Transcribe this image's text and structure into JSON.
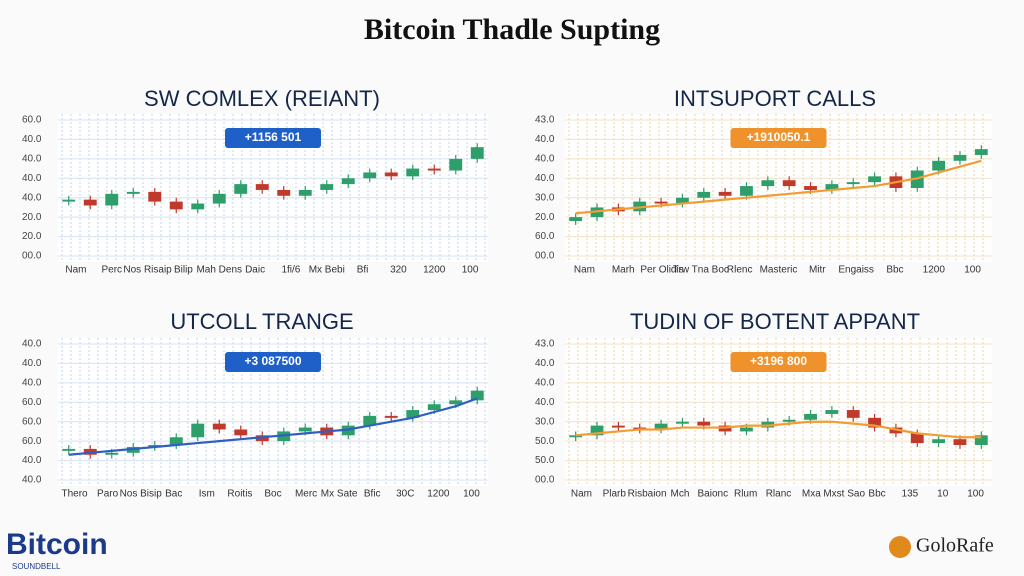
{
  "title": "Bitcoin Thadle Supting",
  "footer": {
    "logo": "Bitcoin",
    "logo_sub": "SOUNDBELL",
    "brand": "GoloRafe"
  },
  "chart_data": [
    {
      "type": "candlestick",
      "title": "SW COMLEX (REIANT)",
      "badge": "+1156 501",
      "badge_color": "#1f5fc8",
      "grid_color": "#d6e3f3",
      "up_color": "#2e9e6b",
      "down_color": "#c0392b",
      "ylim": [
        0,
        7
      ],
      "yticks": [
        {
          "value": 0,
          "label": "00.0"
        },
        {
          "value": 1,
          "label": "20.0"
        },
        {
          "value": 2,
          "label": "20.0"
        },
        {
          "value": 3,
          "label": "40.0"
        },
        {
          "value": 4,
          "label": "40.0"
        },
        {
          "value": 5,
          "label": "40.0"
        },
        {
          "value": 6,
          "label": "40.0"
        },
        {
          "value": 7,
          "label": "60.0"
        }
      ],
      "x_labels": [
        "Nam",
        "Perc",
        "Nos Risaip",
        "Bilip",
        "Mah Dens",
        "Daic",
        "1fi/6",
        "Mx Bebi",
        "Bfi",
        "320",
        "1200",
        "100"
      ],
      "open": [
        2.8,
        2.9,
        2.6,
        3.2,
        3.3,
        2.8,
        2.4,
        2.7,
        3.2,
        3.7,
        3.4,
        3.1,
        3.4,
        3.7,
        4.0,
        4.3,
        4.1,
        4.5,
        4.4,
        5.0
      ],
      "high": [
        3.1,
        3.1,
        3.4,
        3.5,
        3.5,
        3.0,
        2.9,
        3.4,
        3.9,
        3.9,
        3.6,
        3.6,
        3.9,
        4.2,
        4.5,
        4.5,
        4.7,
        4.7,
        5.2,
        5.8
      ],
      "low": [
        2.6,
        2.4,
        2.4,
        3.0,
        2.6,
        2.2,
        2.2,
        2.5,
        3.0,
        3.2,
        2.9,
        2.9,
        3.2,
        3.5,
        3.8,
        3.9,
        3.9,
        4.2,
        4.2,
        4.8
      ],
      "close": [
        2.9,
        2.6,
        3.2,
        3.3,
        2.8,
        2.4,
        2.7,
        3.2,
        3.7,
        3.4,
        3.1,
        3.4,
        3.7,
        4.0,
        4.3,
        4.1,
        4.5,
        4.4,
        5.0,
        5.6
      ]
    },
    {
      "type": "candlestick",
      "title": "INTSUPORT CALLS",
      "badge": "+1910050.1",
      "badge_color": "#f0922b",
      "grid_color": "#f2e2c6",
      "up_color": "#2e9e6b",
      "down_color": "#c0392b",
      "ylim": [
        0,
        7
      ],
      "yticks": [
        {
          "value": 0,
          "label": "00.0"
        },
        {
          "value": 1,
          "label": "60.0"
        },
        {
          "value": 2,
          "label": "20.0"
        },
        {
          "value": 3,
          "label": "30.0"
        },
        {
          "value": 4,
          "label": "40.0"
        },
        {
          "value": 5,
          "label": "40.0"
        },
        {
          "value": 6,
          "label": "40.0"
        },
        {
          "value": 7,
          "label": "43.0"
        }
      ],
      "x_labels": [
        "Nam",
        "Marh",
        "Per Olidis",
        "Trw Tna Boc",
        "Rlenc",
        "Masteric",
        "Mitr",
        "Engaiss",
        "Bbc",
        "1200",
        "100"
      ],
      "open": [
        1.8,
        2.0,
        2.5,
        2.3,
        2.8,
        2.7,
        3.0,
        3.3,
        3.1,
        3.6,
        3.9,
        3.6,
        3.4,
        3.7,
        3.8,
        4.1,
        3.5,
        4.4,
        4.9,
        5.2
      ],
      "high": [
        2.2,
        2.7,
        2.7,
        3.0,
        3.0,
        3.2,
        3.5,
        3.5,
        3.8,
        4.1,
        4.1,
        3.8,
        3.9,
        4.0,
        4.3,
        4.3,
        4.6,
        5.1,
        5.4,
        5.7
      ],
      "low": [
        1.6,
        1.8,
        2.1,
        2.1,
        2.5,
        2.5,
        2.8,
        2.9,
        2.9,
        3.4,
        3.4,
        3.2,
        3.2,
        3.5,
        3.6,
        3.3,
        3.3,
        4.2,
        4.7,
        5.0
      ],
      "close": [
        2.0,
        2.5,
        2.3,
        2.8,
        2.7,
        3.0,
        3.3,
        3.1,
        3.6,
        3.9,
        3.6,
        3.4,
        3.7,
        3.8,
        4.1,
        3.5,
        4.4,
        4.9,
        5.2,
        5.5
      ],
      "line": [
        2.2,
        2.3,
        2.4,
        2.5,
        2.6,
        2.7,
        2.8,
        2.9,
        3.0,
        3.1,
        3.2,
        3.3,
        3.4,
        3.5,
        3.6,
        3.8,
        4.0,
        4.3,
        4.6,
        4.9
      ],
      "line_color": "#f39c32"
    },
    {
      "type": "candlestick",
      "title": "UTCOLL TRANGE",
      "badge": "+3 087500",
      "badge_color": "#1f5fc8",
      "grid_color": "#d6e3f3",
      "up_color": "#2e9e6b",
      "down_color": "#c0392b",
      "ylim": [
        0,
        7
      ],
      "yticks": [
        {
          "value": 0,
          "label": "40.0"
        },
        {
          "value": 1,
          "label": "40.0"
        },
        {
          "value": 2,
          "label": "60.0"
        },
        {
          "value": 3,
          "label": "60.0"
        },
        {
          "value": 4,
          "label": "60.0"
        },
        {
          "value": 5,
          "label": "40.0"
        },
        {
          "value": 6,
          "label": "40.0"
        },
        {
          "value": 7,
          "label": "40.0"
        }
      ],
      "x_labels": [
        "Thero",
        "Paro",
        "Nos Bisip",
        "Bac",
        "Ism",
        "Roitis",
        "Boc",
        "Merc",
        "Mx Sate",
        "Bfic",
        "30C",
        "1200",
        "100"
      ],
      "open": [
        1.5,
        1.6,
        1.3,
        1.4,
        1.7,
        1.8,
        2.2,
        2.9,
        2.6,
        2.3,
        2.0,
        2.5,
        2.7,
        2.3,
        2.8,
        3.3,
        3.2,
        3.6,
        3.9,
        4.1
      ],
      "high": [
        1.8,
        1.8,
        1.6,
        1.9,
        2.0,
        2.4,
        3.1,
        3.1,
        2.8,
        2.5,
        2.7,
        2.9,
        2.9,
        3.0,
        3.5,
        3.5,
        3.8,
        4.1,
        4.3,
        4.8
      ],
      "low": [
        1.3,
        1.1,
        1.1,
        1.2,
        1.5,
        1.6,
        2.0,
        2.4,
        2.1,
        1.8,
        1.8,
        2.3,
        2.1,
        2.1,
        2.6,
        3.0,
        3.0,
        3.4,
        3.7,
        3.9
      ],
      "close": [
        1.6,
        1.3,
        1.4,
        1.7,
        1.8,
        2.2,
        2.9,
        2.6,
        2.3,
        2.0,
        2.5,
        2.7,
        2.3,
        2.8,
        3.3,
        3.2,
        3.6,
        3.9,
        4.1,
        4.6
      ],
      "line": [
        1.3,
        1.4,
        1.5,
        1.6,
        1.7,
        1.8,
        1.9,
        2.0,
        2.1,
        2.2,
        2.3,
        2.4,
        2.5,
        2.6,
        2.8,
        3.0,
        3.2,
        3.5,
        3.8,
        4.2
      ],
      "line_color": "#2f5fc4"
    },
    {
      "type": "candlestick",
      "title": "TUDIN OF BOTENT APPANT",
      "badge": "+3196 800",
      "badge_color": "#f0922b",
      "grid_color": "#f2e2c6",
      "up_color": "#2e9e6b",
      "down_color": "#c0392b",
      "ylim": [
        0,
        7
      ],
      "yticks": [
        {
          "value": 0,
          "label": "00.0"
        },
        {
          "value": 1,
          "label": "50.0"
        },
        {
          "value": 2,
          "label": "50.0"
        },
        {
          "value": 3,
          "label": "30.0"
        },
        {
          "value": 4,
          "label": "40.0"
        },
        {
          "value": 5,
          "label": "40.0"
        },
        {
          "value": 6,
          "label": "40.0"
        },
        {
          "value": 7,
          "label": "43.0"
        }
      ],
      "x_labels": [
        "Nam",
        "Plarb",
        "Risbaion",
        "Mch",
        "Baionc",
        "Rlum",
        "Rlanc",
        "Mxa",
        "Mxst Sao",
        "Bbc",
        "135",
        "10",
        "100"
      ],
      "open": [
        2.2,
        2.3,
        2.8,
        2.7,
        2.6,
        2.9,
        3.0,
        2.8,
        2.5,
        2.7,
        3.0,
        3.1,
        3.4,
        3.6,
        3.2,
        2.7,
        2.4,
        1.9,
        2.1,
        1.8
      ],
      "high": [
        2.5,
        3.0,
        3.0,
        2.9,
        3.1,
        3.2,
        3.2,
        3.0,
        2.9,
        3.2,
        3.3,
        3.6,
        3.8,
        3.8,
        3.4,
        2.9,
        2.6,
        2.3,
        2.3,
        2.5
      ],
      "low": [
        2.0,
        2.1,
        2.5,
        2.4,
        2.4,
        2.7,
        2.6,
        2.3,
        2.3,
        2.5,
        2.8,
        2.9,
        3.2,
        3.0,
        2.5,
        2.2,
        1.7,
        1.7,
        1.6,
        1.6
      ],
      "close": [
        2.3,
        2.8,
        2.7,
        2.6,
        2.9,
        3.0,
        2.8,
        2.5,
        2.7,
        3.0,
        3.1,
        3.4,
        3.6,
        3.2,
        2.7,
        2.4,
        1.9,
        2.1,
        1.8,
        2.3
      ],
      "line": [
        2.3,
        2.4,
        2.5,
        2.6,
        2.6,
        2.7,
        2.7,
        2.7,
        2.8,
        2.8,
        2.9,
        3.0,
        3.0,
        2.9,
        2.8,
        2.6,
        2.4,
        2.3,
        2.2,
        2.2
      ],
      "line_color": "#f39c32"
    }
  ]
}
